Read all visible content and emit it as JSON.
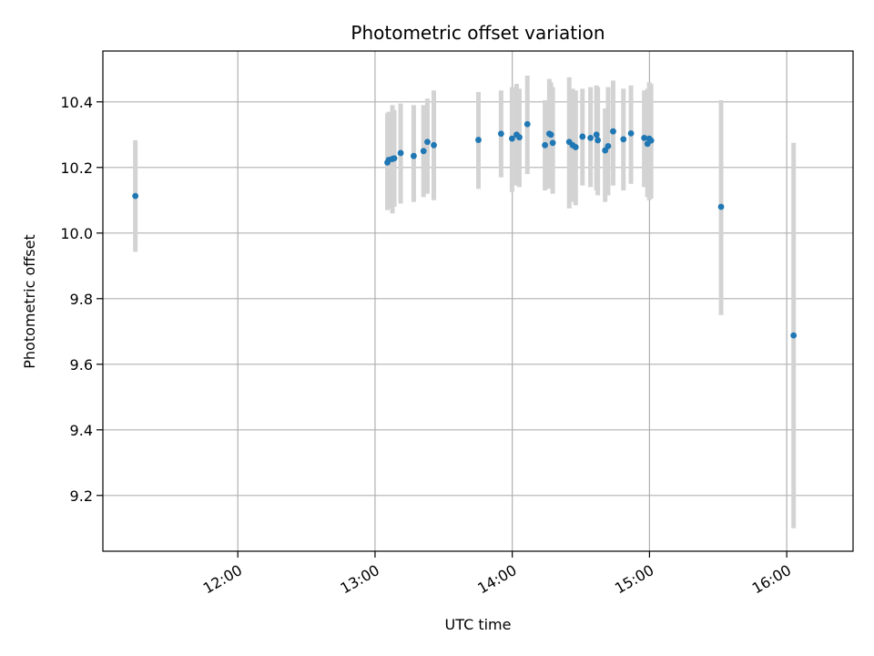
{
  "chart_data": {
    "type": "scatter",
    "title": "Photometric offset variation",
    "xlabel": "UTC time",
    "ylabel": "Photometric offset",
    "grid": true,
    "xlim_minutes": [
      661,
      989
    ],
    "ylim": [
      9.03,
      10.555
    ],
    "x_ticks": [
      {
        "minutes": 720,
        "label": "12:00"
      },
      {
        "minutes": 780,
        "label": "13:00"
      },
      {
        "minutes": 840,
        "label": "14:00"
      },
      {
        "minutes": 900,
        "label": "15:00"
      },
      {
        "minutes": 960,
        "label": "16:00"
      }
    ],
    "y_ticks": [
      {
        "value": 9.2,
        "label": "9.2"
      },
      {
        "value": 9.4,
        "label": "9.4"
      },
      {
        "value": 9.6,
        "label": "9.6"
      },
      {
        "value": 9.8,
        "label": "9.8"
      },
      {
        "value": 10.0,
        "label": "10.0"
      },
      {
        "value": 10.2,
        "label": "10.2"
      },
      {
        "value": 10.4,
        "label": "10.4"
      }
    ],
    "marker_color": "#1f77b4",
    "errorbar_color": "#d3d3d3",
    "points": [
      {
        "t": 675.2,
        "y": 10.113,
        "lo": 9.943,
        "hi": 10.283
      },
      {
        "t": 785.4,
        "y": 10.215,
        "lo": 10.07,
        "hi": 10.365
      },
      {
        "t": 786.0,
        "y": 10.223,
        "lo": 10.075,
        "hi": 10.37
      },
      {
        "t": 787.6,
        "y": 10.226,
        "lo": 10.06,
        "hi": 10.39
      },
      {
        "t": 788.4,
        "y": 10.228,
        "lo": 10.08,
        "hi": 10.375
      },
      {
        "t": 791.2,
        "y": 10.244,
        "lo": 10.09,
        "hi": 10.395
      },
      {
        "t": 796.9,
        "y": 10.235,
        "lo": 10.095,
        "hi": 10.39
      },
      {
        "t": 801.2,
        "y": 10.25,
        "lo": 10.11,
        "hi": 10.39
      },
      {
        "t": 802.9,
        "y": 10.278,
        "lo": 10.12,
        "hi": 10.41
      },
      {
        "t": 805.7,
        "y": 10.268,
        "lo": 10.1,
        "hi": 10.435
      },
      {
        "t": 825.2,
        "y": 10.284,
        "lo": 10.135,
        "hi": 10.43
      },
      {
        "t": 835.1,
        "y": 10.303,
        "lo": 10.17,
        "hi": 10.435
      },
      {
        "t": 839.9,
        "y": 10.288,
        "lo": 10.125,
        "hi": 10.445
      },
      {
        "t": 841.9,
        "y": 10.3,
        "lo": 10.145,
        "hi": 10.455
      },
      {
        "t": 843.1,
        "y": 10.292,
        "lo": 10.14,
        "hi": 10.44
      },
      {
        "t": 846.6,
        "y": 10.332,
        "lo": 10.18,
        "hi": 10.48
      },
      {
        "t": 854.3,
        "y": 10.268,
        "lo": 10.13,
        "hi": 10.405
      },
      {
        "t": 856.2,
        "y": 10.303,
        "lo": 10.135,
        "hi": 10.47
      },
      {
        "t": 856.9,
        "y": 10.3,
        "lo": 10.14,
        "hi": 10.46
      },
      {
        "t": 857.7,
        "y": 10.275,
        "lo": 10.12,
        "hi": 10.445
      },
      {
        "t": 864.9,
        "y": 10.278,
        "lo": 10.075,
        "hi": 10.475
      },
      {
        "t": 866.4,
        "y": 10.268,
        "lo": 10.095,
        "hi": 10.44
      },
      {
        "t": 867.7,
        "y": 10.262,
        "lo": 10.085,
        "hi": 10.435
      },
      {
        "t": 870.7,
        "y": 10.294,
        "lo": 10.145,
        "hi": 10.44
      },
      {
        "t": 874.2,
        "y": 10.29,
        "lo": 10.14,
        "hi": 10.445
      },
      {
        "t": 876.8,
        "y": 10.3,
        "lo": 10.13,
        "hi": 10.45
      },
      {
        "t": 877.4,
        "y": 10.283,
        "lo": 10.115,
        "hi": 10.445
      },
      {
        "t": 880.6,
        "y": 10.252,
        "lo": 10.095,
        "hi": 10.38
      },
      {
        "t": 881.9,
        "y": 10.265,
        "lo": 10.115,
        "hi": 10.445
      },
      {
        "t": 884.1,
        "y": 10.31,
        "lo": 10.145,
        "hi": 10.465
      },
      {
        "t": 888.6,
        "y": 10.286,
        "lo": 10.13,
        "hi": 10.44
      },
      {
        "t": 891.9,
        "y": 10.304,
        "lo": 10.15,
        "hi": 10.45
      },
      {
        "t": 897.7,
        "y": 10.29,
        "lo": 10.14,
        "hi": 10.435
      },
      {
        "t": 899.1,
        "y": 10.272,
        "lo": 10.11,
        "hi": 10.44
      },
      {
        "t": 899.9,
        "y": 10.288,
        "lo": 10.1,
        "hi": 10.46
      },
      {
        "t": 900.7,
        "y": 10.282,
        "lo": 10.105,
        "hi": 10.455
      },
      {
        "t": 931.3,
        "y": 10.08,
        "lo": 9.75,
        "hi": 10.405
      },
      {
        "t": 963.0,
        "y": 9.688,
        "lo": 9.1,
        "hi": 10.275
      }
    ]
  }
}
